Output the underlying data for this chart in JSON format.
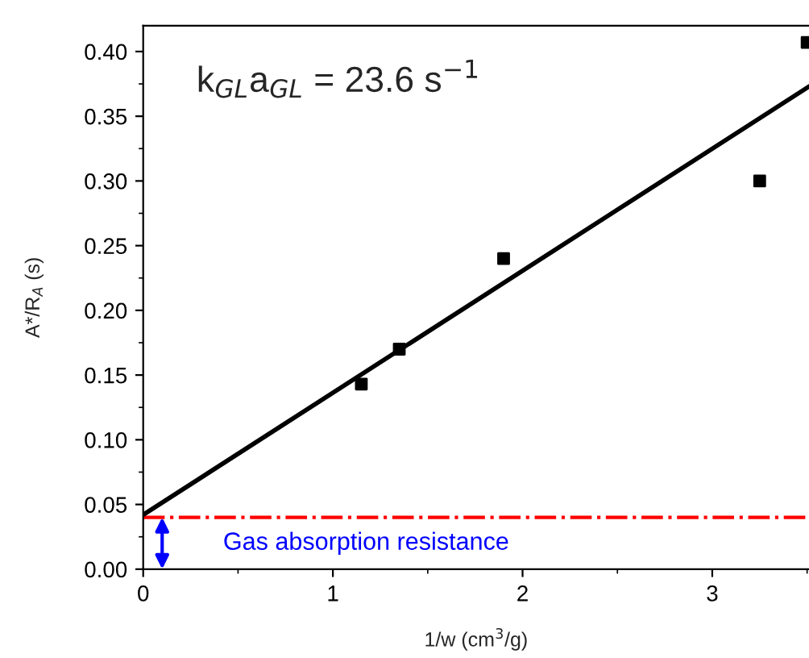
{
  "chart_data": {
    "type": "scatter",
    "xlabel": "1/w (cm$^{3}$/g)",
    "ylabel": "A*/R$_{A}$ (s)",
    "annotations": [
      "k$_{GL}$a$_{GL}$ = 23.6 s$^{−1}$"
    ],
    "series": [
      {
        "color": "#000000",
        "marker": "square",
        "x": [
          1.15,
          1.35,
          1.9,
          3.25,
          3.5
        ],
        "values": [
          0.143,
          0.17,
          0.24,
          0.3,
          0.407
        ]
      },
      {
        "type": "line",
        "color": "#000000",
        "marker": "none",
        "line_style": "solid",
        "x": [
          0,
          3.51
        ],
        "values": [
          0.042,
          0.373
        ]
      }
    ],
    "ref_lines": [
      {
        "axis": "y",
        "value": 0.04,
        "label": "Gas absorption resistance",
        "color": "#ff0000",
        "line_style": "dashdot"
      }
    ],
    "xlim": [
      0,
      3.51
    ],
    "ylim": [
      0,
      0.42
    ],
    "xticks": [
      0,
      1,
      2,
      3
    ],
    "yticks": [
      {
        "value": 0,
        "label": "0.00"
      },
      {
        "value": 0.05,
        "label": "0.05"
      },
      {
        "value": 0.1,
        "label": "0.10"
      },
      {
        "value": 0.15,
        "label": "0.15"
      },
      {
        "value": 0.2,
        "label": "0.20"
      },
      {
        "value": 0.25,
        "label": "0.25"
      },
      {
        "value": 0.3,
        "label": "0.30"
      },
      {
        "value": 0.35,
        "label": "0.35"
      },
      {
        "value": 0.4,
        "label": "0.40"
      }
    ],
    "grid": false,
    "legend": false
  }
}
